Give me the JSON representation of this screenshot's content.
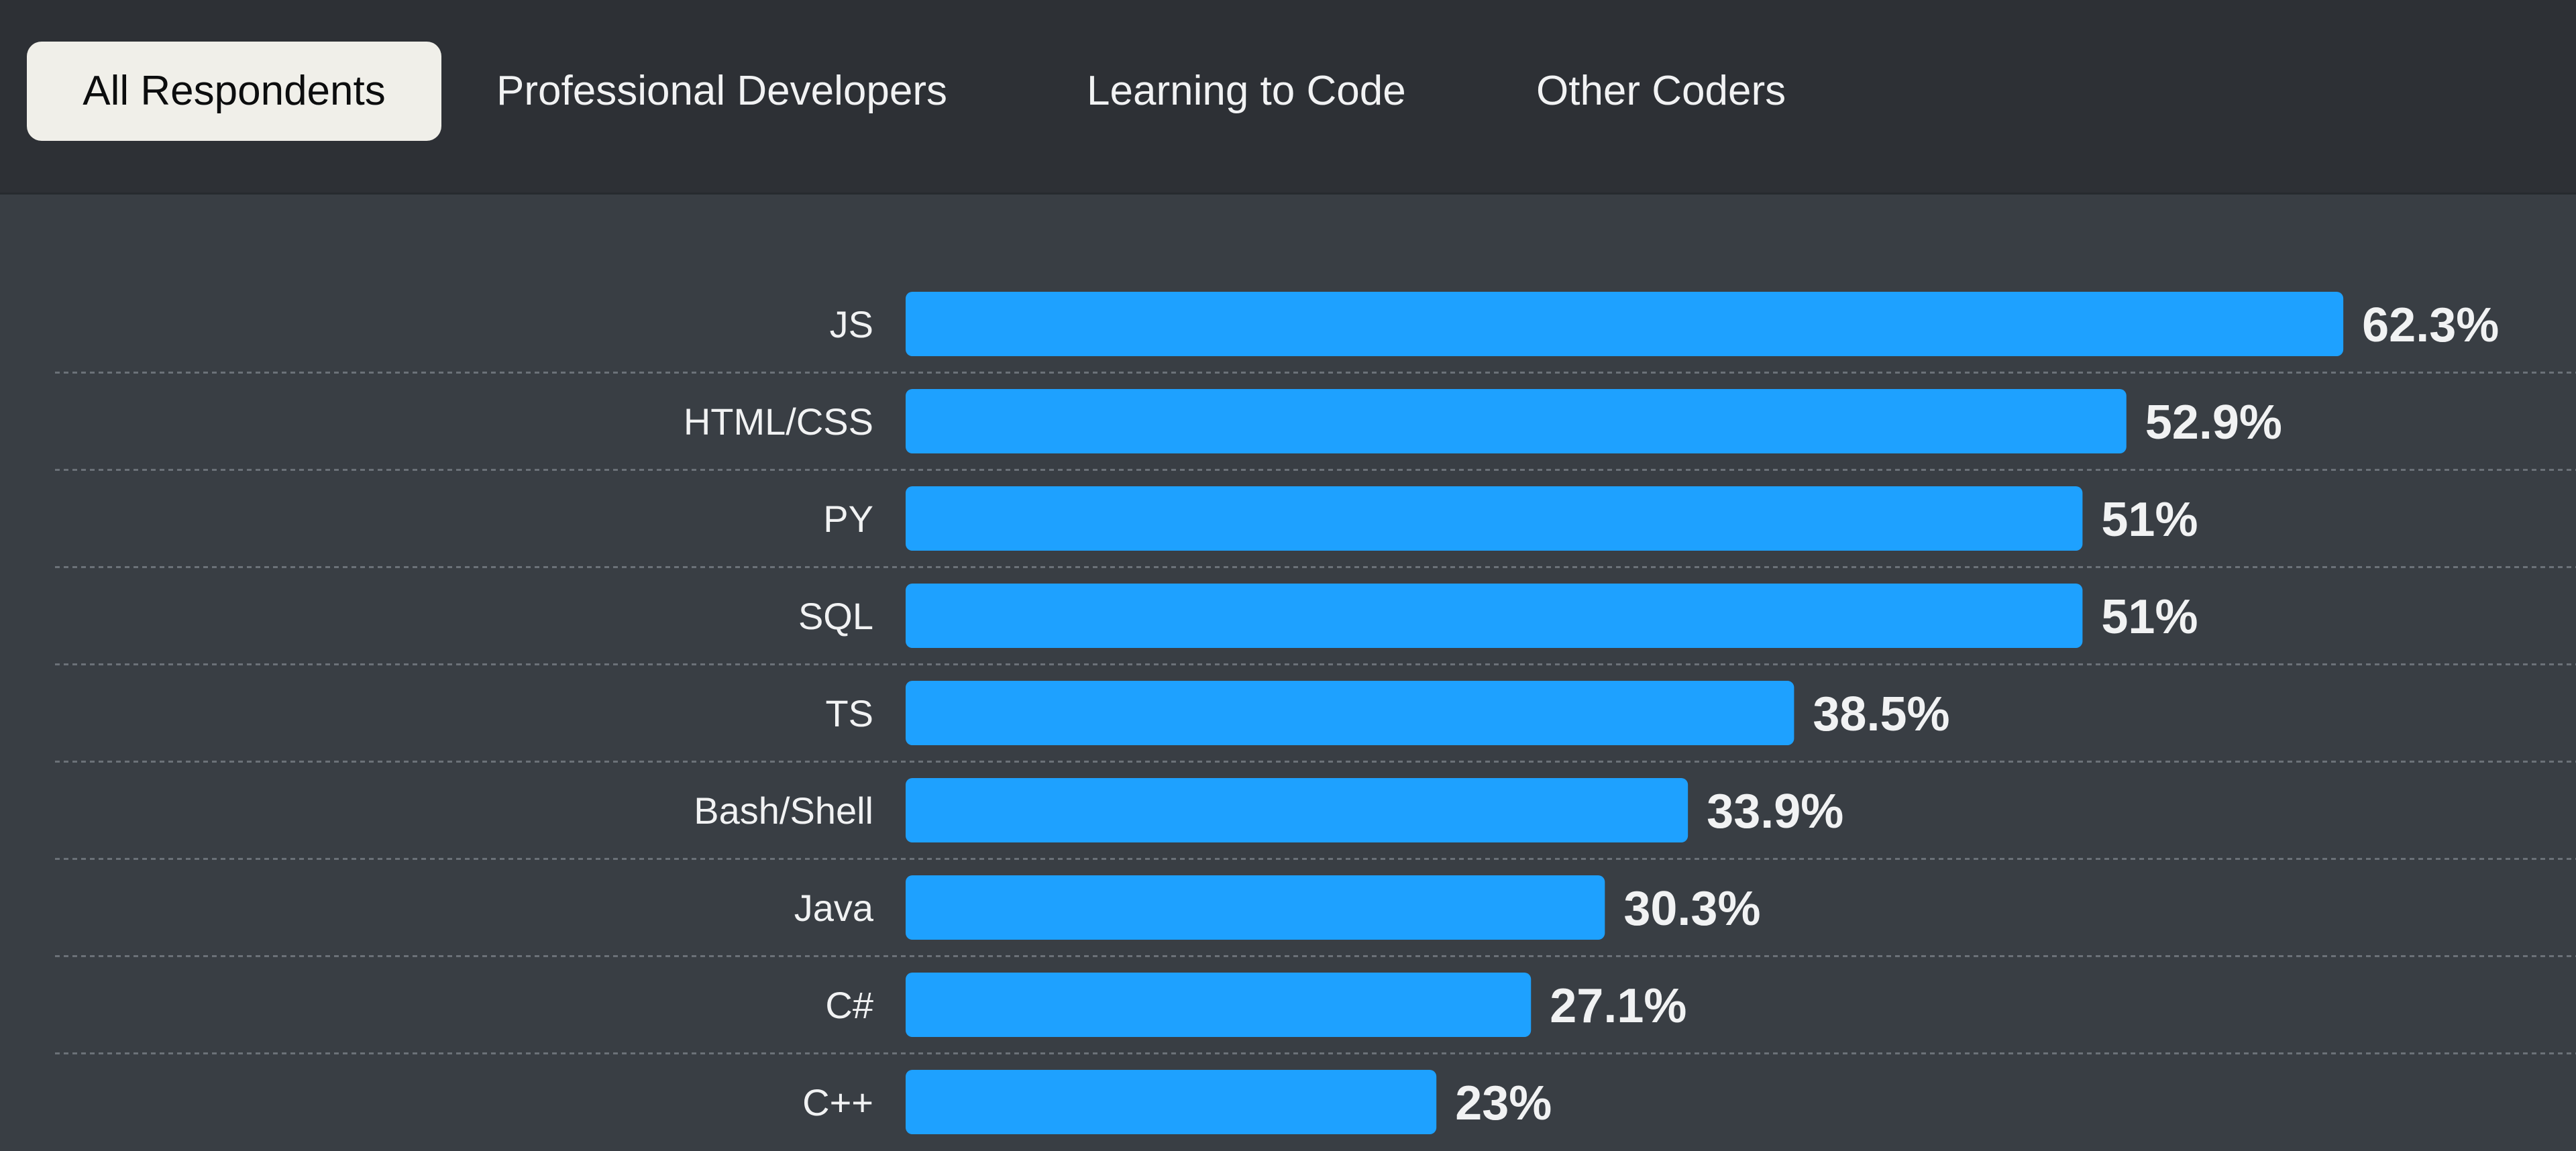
{
  "tabs": [
    {
      "label": "All Respondents",
      "active": true
    },
    {
      "label": "Professional Developers",
      "active": false
    },
    {
      "label": "Learning to Code",
      "active": false
    },
    {
      "label": "Other Coders",
      "active": false
    }
  ],
  "colors": {
    "background": "#393e44",
    "tabbar_background": "#2d3035",
    "bar": "#1ea1ff",
    "text": "#f1f2f3",
    "active_tab_background": "#f0efe9",
    "active_tab_text": "#0c0d0e",
    "gridline": "#6b7178"
  },
  "chart_data": {
    "type": "bar",
    "orientation": "horizontal",
    "categories": [
      "JS",
      "HTML/CSS",
      "PY",
      "SQL",
      "TS",
      "Bash/Shell",
      "Java",
      "C#",
      "C++"
    ],
    "values": [
      62.3,
      52.9,
      51,
      51,
      38.5,
      33.9,
      30.3,
      27.1,
      23
    ],
    "value_labels": [
      "62.3%",
      "52.9%",
      "51%",
      "51%",
      "38.5%",
      "33.9%",
      "30.3%",
      "27.1%",
      "23%"
    ],
    "unit": "%",
    "xlim": [
      0,
      100
    ],
    "grid": "dashed separators between rows",
    "legend": "none"
  }
}
